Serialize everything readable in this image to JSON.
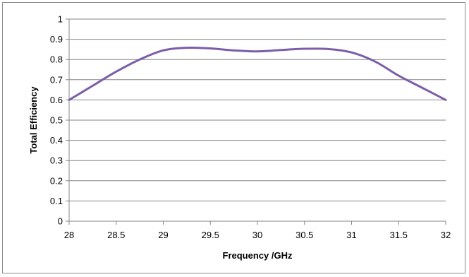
{
  "chart_data": {
    "type": "line",
    "title": "",
    "xlabel": "Frequency /GHz",
    "ylabel": "Total Efficiency",
    "xlim": [
      28,
      32
    ],
    "ylim": [
      0,
      1
    ],
    "x_ticks": [
      "28",
      "28.5",
      "29",
      "29.5",
      "30",
      "30.5",
      "31",
      "31.5",
      "32"
    ],
    "y_ticks": [
      "0",
      "0.1",
      "0.2",
      "0.3",
      "0.4",
      "0.5",
      "0.6",
      "0.7",
      "0.8",
      "0.9",
      "1"
    ],
    "grid": "horizontal",
    "legend": "none",
    "series": [
      {
        "color": "#7B5EA7",
        "x": [
          28,
          28.25,
          28.5,
          28.75,
          29,
          29.25,
          29.5,
          29.75,
          30,
          30.25,
          30.5,
          30.75,
          31,
          31.25,
          31.5,
          31.75,
          32
        ],
        "y": [
          0.6,
          0.67,
          0.74,
          0.8,
          0.845,
          0.858,
          0.855,
          0.845,
          0.84,
          0.847,
          0.853,
          0.852,
          0.835,
          0.79,
          0.72,
          0.66,
          0.6
        ]
      }
    ]
  }
}
